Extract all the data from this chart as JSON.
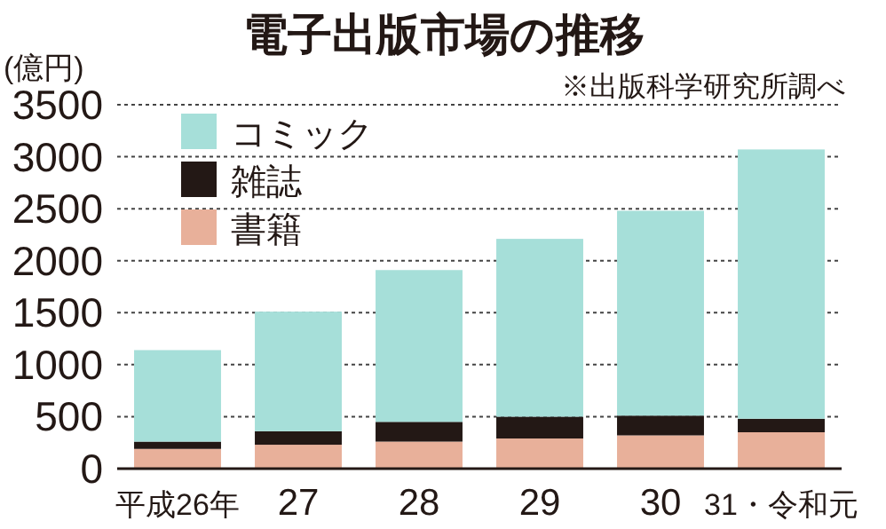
{
  "chart_data": {
    "type": "bar",
    "title": "電子出版市場の推移",
    "ylabel": "(億円)",
    "annotations": [
      "※出版科学研究所調べ"
    ],
    "categories": [
      "平成26年",
      "27",
      "28",
      "29",
      "30",
      "31・令和元"
    ],
    "stacked": true,
    "series": [
      {
        "name": "書籍",
        "color": "#e8b09a",
        "values": [
          190,
          230,
          260,
          290,
          320,
          350
        ]
      },
      {
        "name": "雑誌",
        "color": "#231815",
        "values": [
          70,
          130,
          190,
          210,
          190,
          130
        ]
      },
      {
        "name": "コミック",
        "color": "#a6dfd9",
        "values": [
          880,
          1150,
          1460,
          1710,
          1970,
          2590
        ]
      }
    ],
    "ylim": [
      0,
      3500
    ],
    "yticks": [
      0,
      500,
      1000,
      1500,
      2000,
      2500,
      3000,
      3500
    ],
    "grid": "y",
    "legend": "top left"
  }
}
